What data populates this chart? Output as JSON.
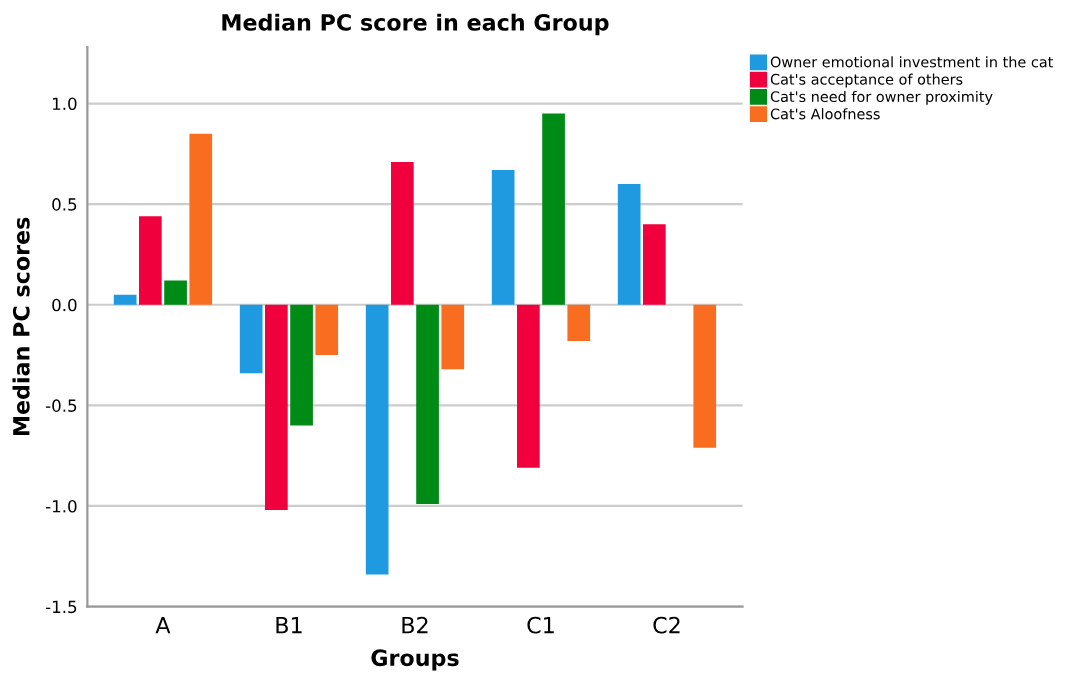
{
  "chart_data": {
    "type": "bar",
    "title": "Median PC score in each Group",
    "xlabel": "Groups",
    "ylabel": "Median PC scores",
    "categories": [
      "A",
      "B1",
      "B2",
      "C1",
      "C2"
    ],
    "series": [
      {
        "name": "Owner emotional investment in the cat",
        "color": "#1f9ae0",
        "values": [
          0.05,
          -0.34,
          -1.34,
          0.67,
          0.6
        ]
      },
      {
        "name": "Cat's acceptance of others",
        "color": "#f0003c",
        "values": [
          0.44,
          -1.02,
          0.71,
          -0.81,
          0.4
        ]
      },
      {
        "name": "Cat's need for owner proximity",
        "color": "#008a16",
        "values": [
          0.12,
          -0.6,
          -0.99,
          0.95,
          0.0
        ]
      },
      {
        "name": "Cat's Aloofness",
        "color": "#f86d1f",
        "values": [
          0.85,
          -0.25,
          -0.32,
          -0.18,
          -0.71
        ]
      }
    ],
    "ylim": [
      -1.5,
      1.28
    ],
    "yticks": [
      {
        "value": -1.5,
        "label": "-1.5"
      },
      {
        "value": -1.0,
        "label": "-1.0"
      },
      {
        "value": -0.5,
        "label": "-0.5"
      },
      {
        "value": 0.0,
        "label": "0.0"
      },
      {
        "value": 0.5,
        "label": "0.5"
      },
      {
        "value": 1.0,
        "label": "1.0"
      }
    ],
    "grid": "y",
    "legend": "top right"
  }
}
